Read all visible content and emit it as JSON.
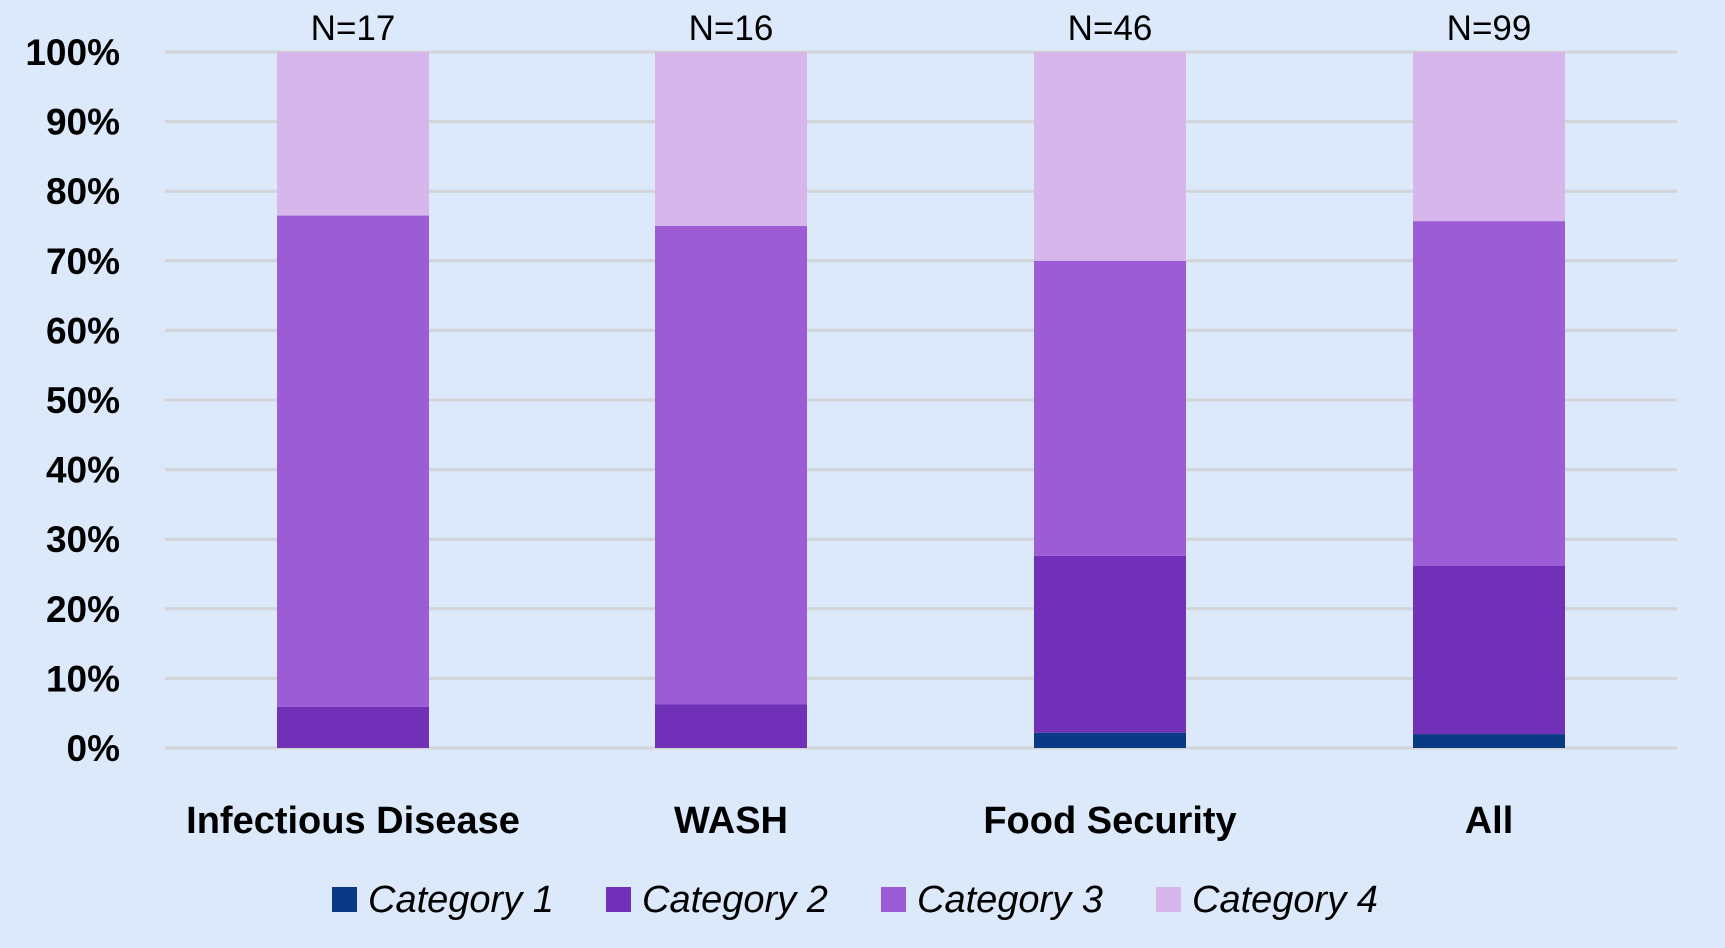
{
  "chart_data": {
    "type": "bar",
    "stacked": true,
    "percent_stacked": true,
    "title": "",
    "xlabel": "",
    "ylabel": "",
    "ylim": [
      0,
      100
    ],
    "y_ticks": [
      "0%",
      "10%",
      "20%",
      "30%",
      "40%",
      "50%",
      "60%",
      "70%",
      "80%",
      "90%",
      "100%"
    ],
    "grid": true,
    "legend_position": "bottom",
    "categories": [
      "Infectious Disease",
      "WASH",
      "Food Security",
      "All"
    ],
    "annotations": [
      "N=17",
      "N=16",
      "N=46",
      "N=99"
    ],
    "series": [
      {
        "name": "Category 1",
        "color": "#0b3a84",
        "values": [
          0,
          0,
          2.2,
          2.0
        ]
      },
      {
        "name": "Category 2",
        "color": "#7030b8",
        "values": [
          5.9,
          6.3,
          25.4,
          24.2
        ]
      },
      {
        "name": "Category 3",
        "color": "#9b5cd6",
        "values": [
          70.6,
          68.7,
          42.4,
          49.5
        ]
      },
      {
        "name": "Category 4",
        "color": "#d7b7eb",
        "values": [
          23.5,
          25.0,
          30.0,
          24.3
        ]
      }
    ],
    "colors": {
      "background": "#dbe9fb",
      "gridline": "#d2d4d8"
    }
  }
}
